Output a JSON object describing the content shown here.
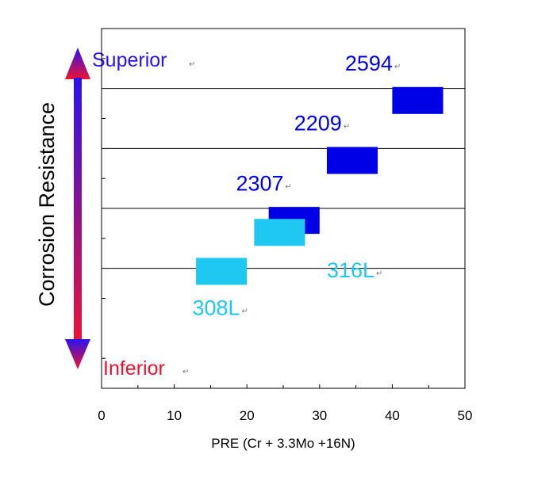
{
  "chart_data": {
    "type": "range-bar",
    "xlabel": "PRE (Cr + 3.3Mo +16N)",
    "xlim": [
      0,
      50
    ],
    "xticks": [
      0,
      10,
      20,
      30,
      40,
      50
    ],
    "ylabel": "Corrosion Resistance",
    "scale_top_label": "Superior",
    "scale_bottom_label": "Inferior",
    "colors": {
      "duplex": "#0000e6",
      "austenitic": "#1ec8f0",
      "arrow_top": "#2a12f0",
      "arrow_bottom": "#ee1232"
    },
    "bars": [
      {
        "grade": "2594",
        "x_start": 40,
        "x_end": 47,
        "level": 4.8,
        "color": "#0000e6",
        "label_x": 33.5,
        "label_level": 5.3
      },
      {
        "grade": "2209",
        "x_start": 31,
        "x_end": 38,
        "level": 3.8,
        "color": "#0000e6",
        "label_x": 26.5,
        "label_level": 4.3
      },
      {
        "grade": "2307",
        "x_start": 23,
        "x_end": 30,
        "level": 2.8,
        "color": "#0000e6",
        "label_x": 18.5,
        "label_level": 3.3
      },
      {
        "grade": "316L",
        "x_start": 21,
        "x_end": 28,
        "level": 2.6,
        "color": "#1ec8f0",
        "label_x": 31,
        "label_level": 1.85
      },
      {
        "grade": "308L",
        "x_start": 13,
        "x_end": 20,
        "level": 1.95,
        "color": "#1ec8f0",
        "label_x": 12.5,
        "label_level": 1.22
      }
    ],
    "separators": [
      2,
      3,
      4,
      5
    ],
    "grid": false
  }
}
